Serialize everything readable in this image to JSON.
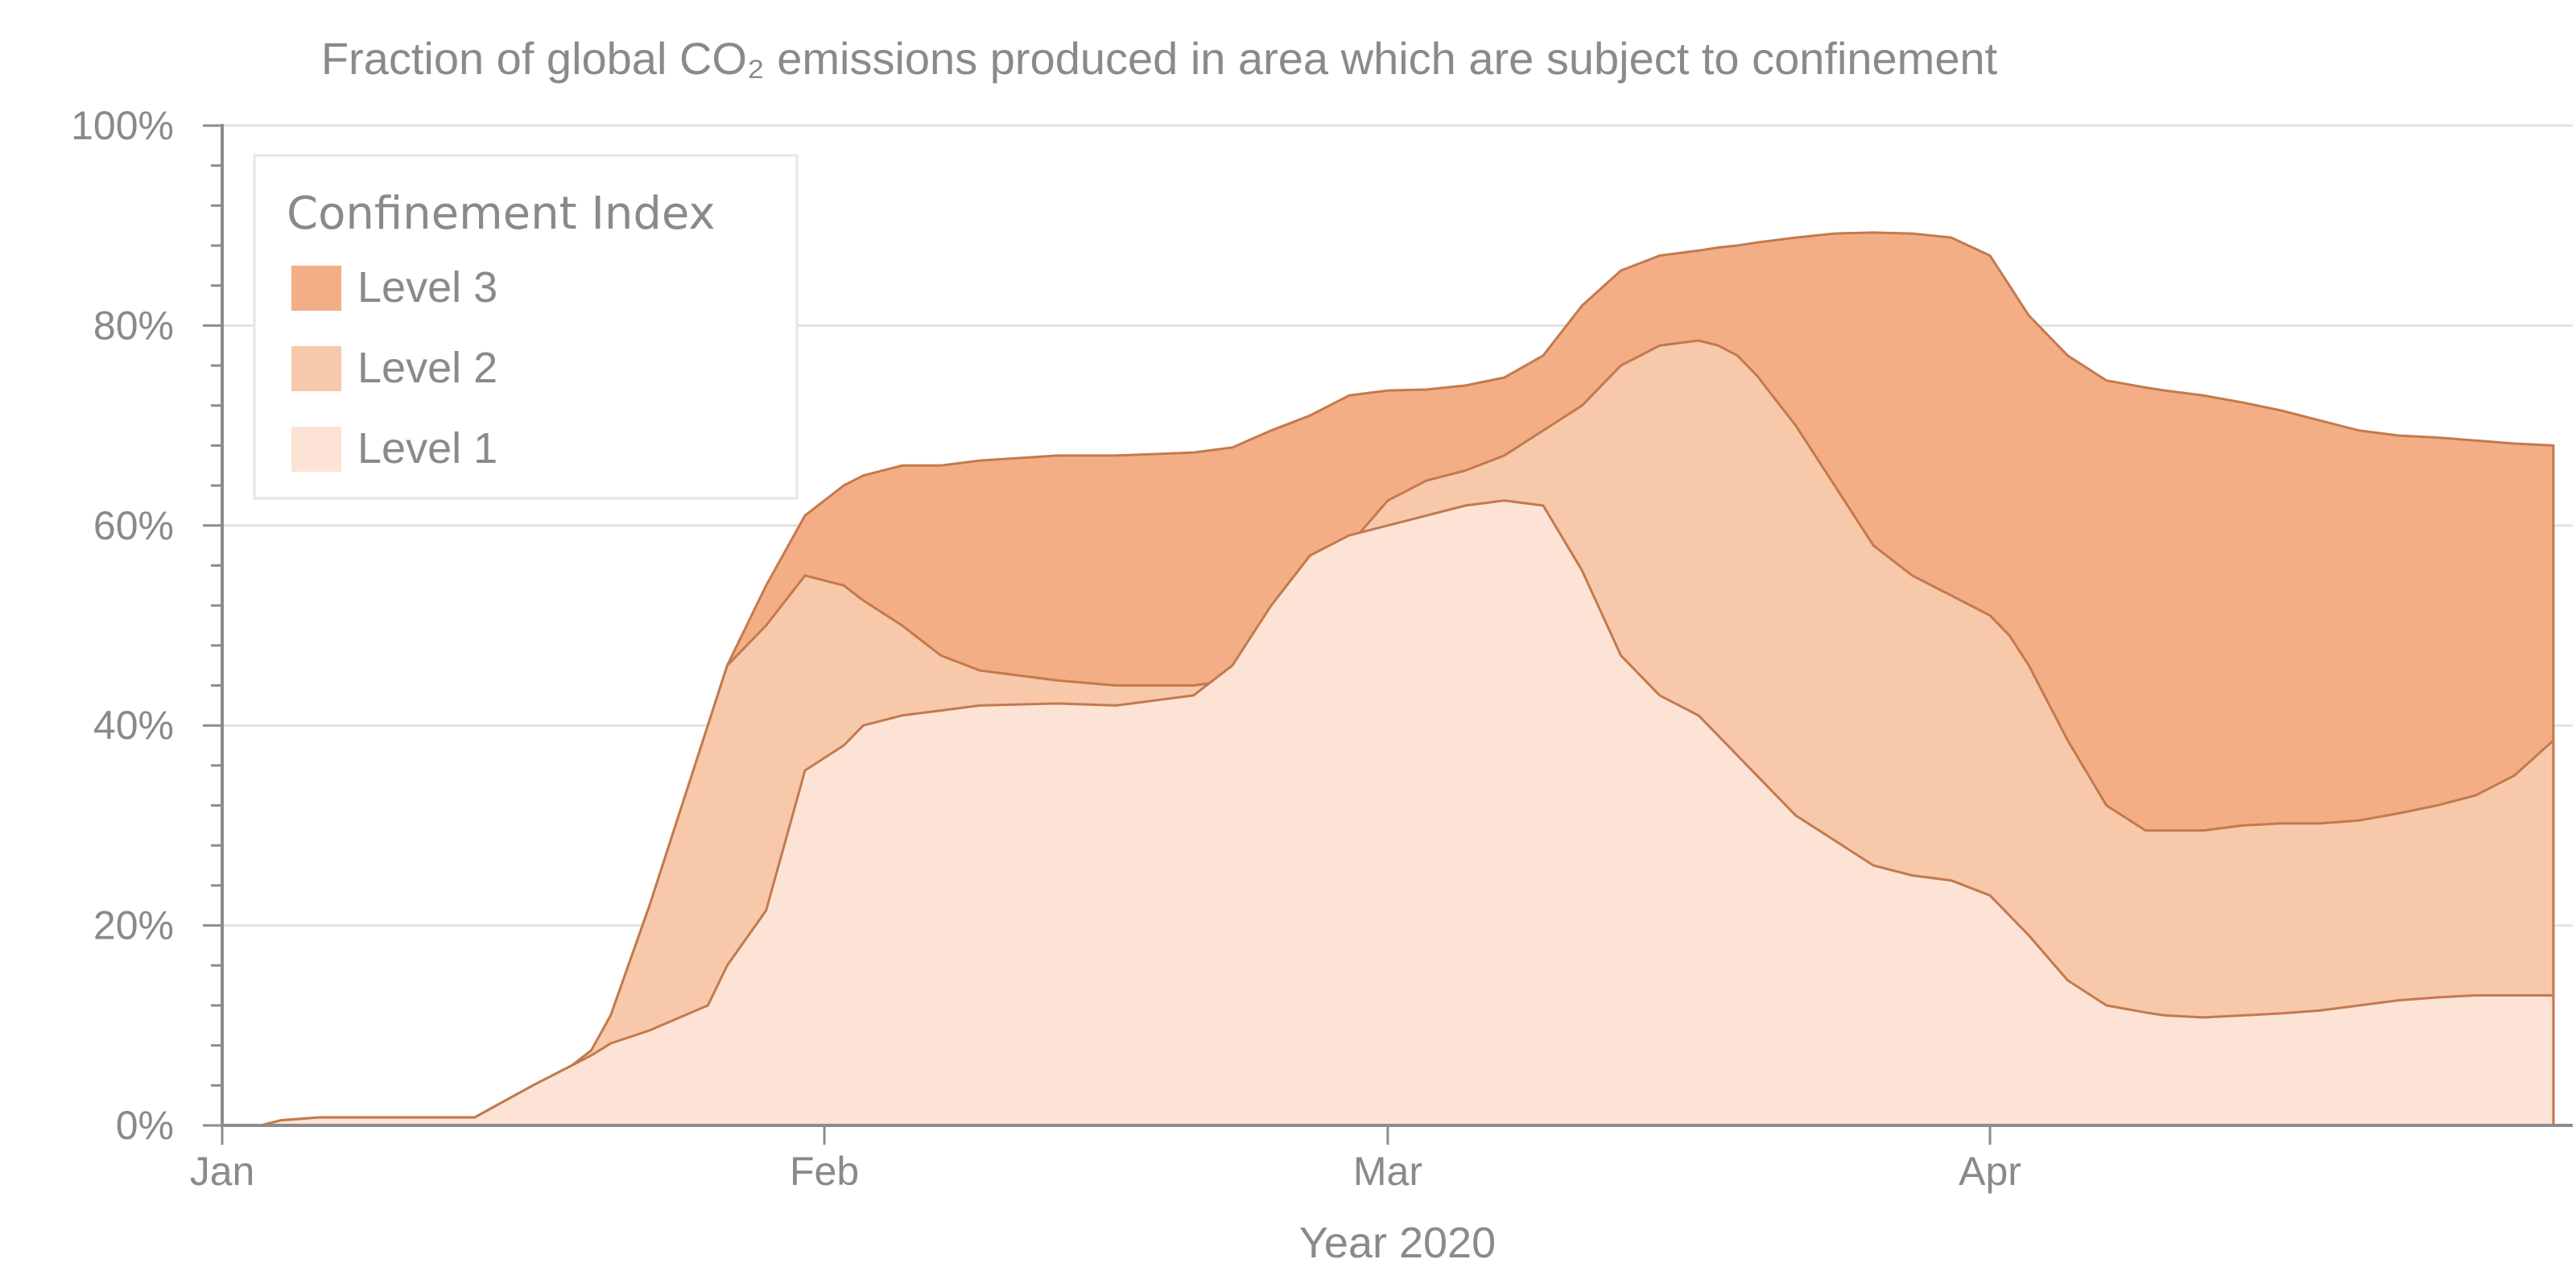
{
  "chart_data": {
    "type": "area",
    "stacked": false,
    "title": "Fraction of global CO₂ emissions produced in area which are subject to confinement",
    "xlabel": "Year 2020",
    "ylabel": "",
    "ylim": [
      0,
      100
    ],
    "y_unit": "%",
    "y_ticks": [
      "0%",
      "20%",
      "40%",
      "60%",
      "80%",
      "100%"
    ],
    "x_ticks": [
      {
        "date": "2020-01-01",
        "label": "Jan"
      },
      {
        "date": "2020-02-01",
        "label": "Feb"
      },
      {
        "date": "2020-03-01",
        "label": "Mar"
      },
      {
        "date": "2020-04-01",
        "label": "Apr"
      }
    ],
    "xlim": [
      "2020-01-01",
      "2020-05-01"
    ],
    "grid": true,
    "legend_placement": "top-left",
    "legend_title": "Confinement Index",
    "x": [
      "2020-01-03",
      "2020-01-04",
      "2020-01-06",
      "2020-01-14",
      "2020-01-17",
      "2020-01-19",
      "2020-01-20",
      "2020-01-21",
      "2020-01-23",
      "2020-01-26",
      "2020-01-27",
      "2020-01-29",
      "2020-01-31",
      "2020-02-02",
      "2020-02-03",
      "2020-02-05",
      "2020-02-07",
      "2020-02-09",
      "2020-02-13",
      "2020-02-16",
      "2020-02-20",
      "2020-02-22",
      "2020-02-24",
      "2020-02-26",
      "2020-02-28",
      "2020-03-01",
      "2020-03-03",
      "2020-03-05",
      "2020-03-07",
      "2020-03-09",
      "2020-03-11",
      "2020-03-13",
      "2020-03-15",
      "2020-03-17",
      "2020-03-18",
      "2020-03-19",
      "2020-03-20",
      "2020-03-22",
      "2020-03-24",
      "2020-03-26",
      "2020-03-28",
      "2020-03-30",
      "2020-04-01",
      "2020-04-02",
      "2020-04-03",
      "2020-04-05",
      "2020-04-07",
      "2020-04-09",
      "2020-04-10",
      "2020-04-12",
      "2020-04-14",
      "2020-04-16",
      "2020-04-18",
      "2020-04-20",
      "2020-04-22",
      "2020-04-24",
      "2020-04-26",
      "2020-04-28",
      "2020-04-30"
    ],
    "series": [
      {
        "name": "Level 3",
        "color": "#f4ae85",
        "values": [
          0,
          0.5,
          0.8,
          0.8,
          4,
          6,
          7.5,
          11,
          22,
          40,
          46,
          54,
          61,
          64,
          65,
          66,
          66,
          66.5,
          67,
          67,
          67.3,
          67.8,
          69.5,
          71,
          73,
          73.5,
          73.6,
          74,
          74.8,
          77,
          82,
          85.5,
          87,
          87.5,
          87.8,
          88,
          88.3,
          88.8,
          89.2,
          89.3,
          89.2,
          88.8,
          87,
          84,
          81,
          77,
          74.5,
          73.8,
          73.5,
          73,
          72.3,
          71.5,
          70.5,
          69.5,
          69,
          68.8,
          68.5,
          68.2,
          68
        ]
      },
      {
        "name": "Level 2",
        "color": "#f8c8aa",
        "values": [
          0,
          0.5,
          0.8,
          0.8,
          4,
          6,
          7.5,
          11,
          22,
          40,
          46,
          50,
          55,
          54,
          52.5,
          50,
          47,
          45.5,
          44.5,
          44,
          44,
          44.5,
          47,
          52,
          58,
          62.5,
          64.5,
          65.5,
          67,
          69.5,
          72,
          76,
          78,
          78.5,
          78,
          77,
          75,
          70,
          64,
          58,
          55,
          53,
          51,
          49,
          46,
          38.5,
          32,
          29.5,
          29.5,
          29.5,
          30,
          30.2,
          30.2,
          30.5,
          31.2,
          32,
          33,
          35,
          38.5
        ]
      },
      {
        "name": "Level 1",
        "color": "#fde3d6",
        "values": [
          0,
          0.5,
          0.8,
          0.8,
          4,
          6,
          7,
          8.2,
          9.5,
          12,
          16,
          21.5,
          35.5,
          38,
          40,
          41,
          41.5,
          42,
          42.2,
          42,
          43,
          46,
          52,
          57,
          59,
          60,
          61,
          62,
          62.5,
          62,
          55.5,
          47,
          43,
          41,
          39,
          37,
          35,
          31,
          28.5,
          26,
          25,
          24.5,
          23,
          21,
          19,
          14.5,
          12,
          11.3,
          11,
          10.8,
          11,
          11.2,
          11.5,
          12,
          12.5,
          12.8,
          13,
          13,
          13
        ]
      }
    ]
  }
}
